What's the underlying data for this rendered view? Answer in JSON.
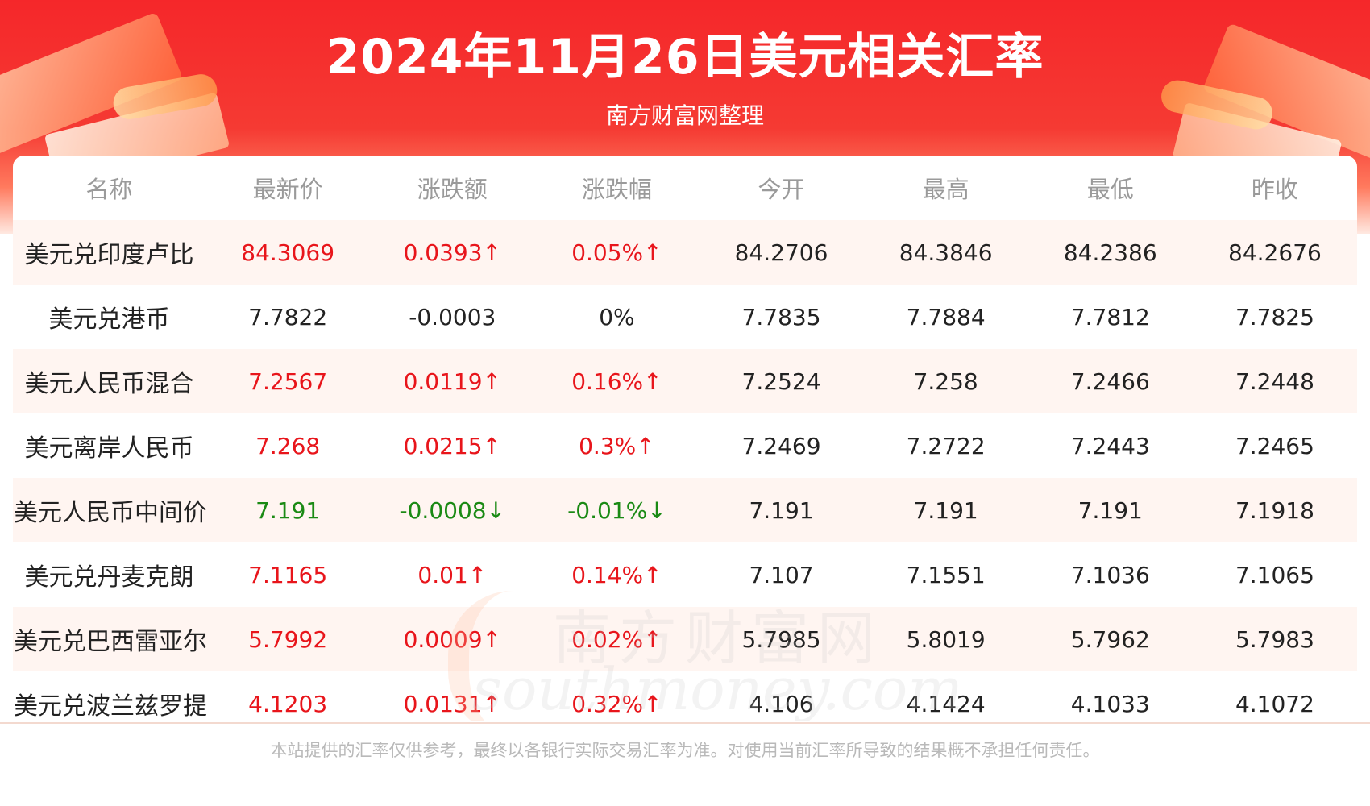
{
  "header": {
    "title": "2024年11月26日美元相关汇率",
    "subtitle": "南方财富网整理"
  },
  "table": {
    "columns": [
      "名称",
      "最新价",
      "涨跌额",
      "涨跌幅",
      "今开",
      "最高",
      "最低",
      "昨收"
    ],
    "rows": [
      {
        "name": "美元兑印度卢比",
        "latest": "84.3069",
        "change": "0.0393↑",
        "pct": "0.05%↑",
        "open": "84.2706",
        "high": "84.3846",
        "low": "84.2386",
        "prev": "84.2676",
        "trend": "up"
      },
      {
        "name": "美元兑港币",
        "latest": "7.7822",
        "change": "-0.0003",
        "pct": "0%",
        "open": "7.7835",
        "high": "7.7884",
        "low": "7.7812",
        "prev": "7.7825",
        "trend": "neutral"
      },
      {
        "name": "美元人民币混合",
        "latest": "7.2567",
        "change": "0.0119↑",
        "pct": "0.16%↑",
        "open": "7.2524",
        "high": "7.258",
        "low": "7.2466",
        "prev": "7.2448",
        "trend": "up"
      },
      {
        "name": "美元离岸人民币",
        "latest": "7.268",
        "change": "0.0215↑",
        "pct": "0.3%↑",
        "open": "7.2469",
        "high": "7.2722",
        "low": "7.2443",
        "prev": "7.2465",
        "trend": "up"
      },
      {
        "name": "美元人民币中间价",
        "latest": "7.191",
        "change": "-0.0008↓",
        "pct": "-0.01%↓",
        "open": "7.191",
        "high": "7.191",
        "low": "7.191",
        "prev": "7.1918",
        "trend": "down"
      },
      {
        "name": "美元兑丹麦克朗",
        "latest": "7.1165",
        "change": "0.01↑",
        "pct": "0.14%↑",
        "open": "7.107",
        "high": "7.1551",
        "low": "7.1036",
        "prev": "7.1065",
        "trend": "up"
      },
      {
        "name": "美元兑巴西雷亚尔",
        "latest": "5.7992",
        "change": "0.0009↑",
        "pct": "0.02%↑",
        "open": "5.7985",
        "high": "5.8019",
        "low": "5.7962",
        "prev": "5.7983",
        "trend": "up"
      },
      {
        "name": "美元兑波兰兹罗提",
        "latest": "4.1203",
        "change": "0.0131↑",
        "pct": "0.32%↑",
        "open": "4.106",
        "high": "4.1424",
        "low": "4.1033",
        "prev": "4.1072",
        "trend": "up"
      }
    ]
  },
  "watermark": {
    "cn": "南方财富网",
    "en": "southmoney.com"
  },
  "footer": {
    "disclaimer": "本站提供的汇率仅供参考，最终以各银行实际交易汇率为准。对使用当前汇率所导致的结果概不承担任何责任。"
  },
  "colors": {
    "up": "#e8151b",
    "down": "#1a8a14",
    "header_red": "#f5272a"
  }
}
